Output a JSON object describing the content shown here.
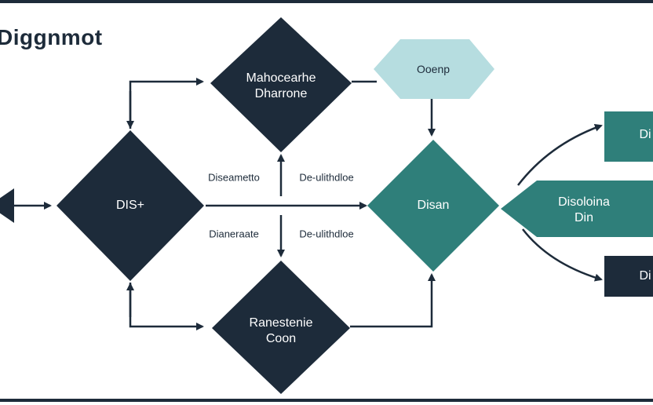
{
  "diagram": {
    "title": "Diggnmot",
    "colors": {
      "navy": "#1d2b3a",
      "teal": "#2f7f7a",
      "light_blue": "#b6dde0",
      "line": "#1d2b3a"
    },
    "nodes": {
      "left_stub": "",
      "dis_plus": "DIS+",
      "top_diamond": "Mahocearhe\nDharrone",
      "top_right_hex": "Ooenp",
      "center_teal": "Disan",
      "bottom_diamond": "Ranestenie\nCoon",
      "right_pointer": "Disoloina\nDin",
      "right_top_box": "Di",
      "right_bottom_box": "Di"
    },
    "edge_labels": {
      "upper_left": "Diseametto",
      "upper_right": "De-ulithdloe",
      "lower_left": "Dianeraate",
      "lower_right": "De-ulithdloe"
    }
  }
}
